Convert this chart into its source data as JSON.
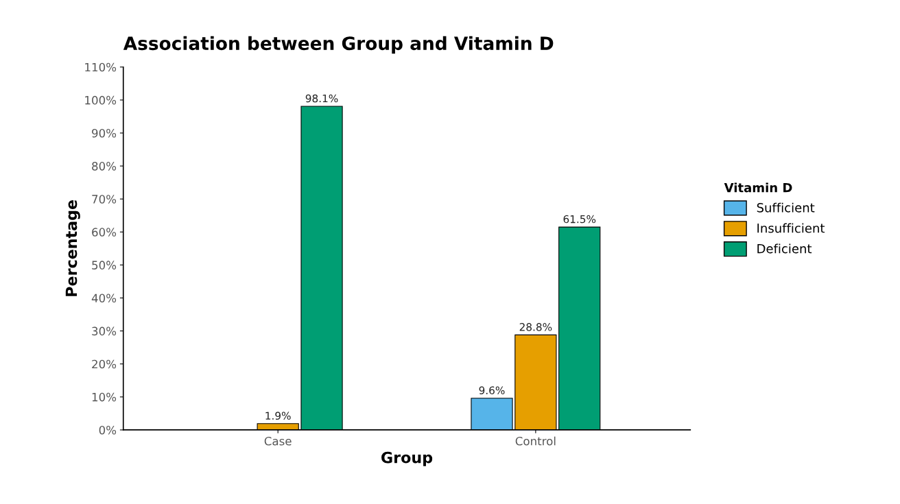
{
  "chart_data": {
    "type": "bar",
    "title": "Association between Group and Vitamin D",
    "xlabel": "Group",
    "ylabel": "Percentage",
    "legend_title": "Vitamin D",
    "categories": [
      "Case",
      "Control"
    ],
    "series": [
      {
        "name": "Sufficient",
        "color": "#56b4e9",
        "values": [
          null,
          9.6
        ],
        "value_labels": [
          null,
          "9.6%"
        ]
      },
      {
        "name": "Insufficient",
        "color": "#e69f00",
        "values": [
          1.9,
          28.8
        ],
        "value_labels": [
          "1.9%",
          "28.8%"
        ]
      },
      {
        "name": "Deficient",
        "color": "#009e73",
        "values": [
          98.1,
          61.5
        ],
        "value_labels": [
          "98.1%",
          "61.5%"
        ]
      }
    ],
    "ylim": [
      0,
      110
    ],
    "yticks": [
      {
        "value": 0,
        "label": "0%"
      },
      {
        "value": 10,
        "label": "10%"
      },
      {
        "value": 20,
        "label": "20%"
      },
      {
        "value": 30,
        "label": "30%"
      },
      {
        "value": 40,
        "label": "40%"
      },
      {
        "value": 50,
        "label": "50%"
      },
      {
        "value": 60,
        "label": "60%"
      },
      {
        "value": 70,
        "label": "70%"
      },
      {
        "value": 80,
        "label": "80%"
      },
      {
        "value": 90,
        "label": "90%"
      },
      {
        "value": 100,
        "label": "100%"
      },
      {
        "value": 110,
        "label": "110%"
      }
    ],
    "grid": false,
    "legend": "right"
  }
}
